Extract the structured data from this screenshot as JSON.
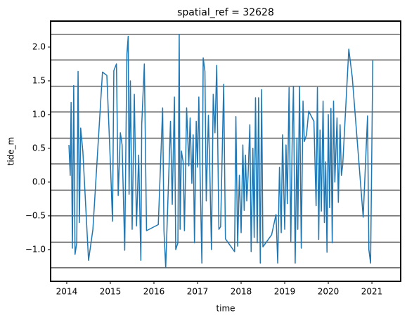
{
  "chart_data": {
    "type": "line",
    "title": "spatial_ref = 32628",
    "xlabel": "time",
    "ylabel": "tide_m",
    "color": "#1f77b4",
    "hline_color": "#666666",
    "hlines": [
      2.19,
      1.81,
      1.42,
      1.04,
      0.65,
      0.27,
      -0.12,
      -0.5,
      -0.89,
      -1.27
    ],
    "x": [
      2014.05,
      2014.08,
      2014.1,
      2014.13,
      2014.16,
      2014.19,
      2014.23,
      2014.26,
      2014.29,
      2014.32,
      2014.37,
      2014.5,
      2014.6,
      2014.82,
      2014.92,
      2015.0,
      2015.05,
      2015.08,
      2015.14,
      2015.18,
      2015.23,
      2015.27,
      2015.33,
      2015.38,
      2015.41,
      2015.43,
      2015.46,
      2015.5,
      2015.55,
      2015.6,
      2015.65,
      2015.7,
      2015.72,
      2015.78,
      2015.83,
      2016.1,
      2016.2,
      2016.23,
      2016.27,
      2016.38,
      2016.42,
      2016.47,
      2016.5,
      2016.55,
      2016.58,
      2016.6,
      2016.63,
      2016.67,
      2016.7,
      2016.75,
      2016.8,
      2016.83,
      2016.87,
      2016.9,
      2016.93,
      2016.97,
      2017.0,
      2017.03,
      2017.06,
      2017.1,
      2017.13,
      2017.17,
      2017.2,
      2017.25,
      2017.28,
      2017.32,
      2017.36,
      2017.4,
      2017.44,
      2017.49,
      2017.53,
      2017.6,
      2017.64,
      2017.85,
      2017.88,
      2017.92,
      2017.96,
      2018.0,
      2018.04,
      2018.07,
      2018.1,
      2018.13,
      2018.16,
      2018.2,
      2018.23,
      2018.27,
      2018.3,
      2018.33,
      2018.37,
      2018.4,
      2018.44,
      2018.47,
      2018.5,
      2018.7,
      2018.8,
      2018.84,
      2018.88,
      2018.92,
      2018.95,
      2019.0,
      2019.03,
      2019.06,
      2019.1,
      2019.14,
      2019.17,
      2019.2,
      2019.24,
      2019.28,
      2019.3,
      2019.34,
      2019.38,
      2019.42,
      2019.45,
      2019.5,
      2019.55,
      2019.67,
      2019.72,
      2019.75,
      2019.78,
      2019.81,
      2019.84,
      2019.88,
      2019.91,
      2019.94,
      2019.97,
      2020.0,
      2020.03,
      2020.06,
      2020.09,
      2020.12,
      2020.15,
      2020.2,
      2020.23,
      2020.27,
      2020.3,
      2020.33,
      2020.47,
      2020.55,
      2020.8,
      2020.9,
      2020.93,
      2020.97,
      2021.02
    ],
    "values": [
      0.55,
      0.1,
      1.18,
      -0.98,
      1.43,
      -1.07,
      -0.9,
      1.64,
      -0.6,
      0.8,
      0.45,
      -1.16,
      -0.7,
      1.63,
      1.58,
      0.3,
      -0.58,
      1.65,
      1.75,
      -0.2,
      0.73,
      0.55,
      -1.01,
      1.9,
      2.16,
      -0.18,
      1.5,
      -0.7,
      1.3,
      -0.65,
      0.4,
      -1.16,
      0.85,
      1.75,
      -0.72,
      -0.63,
      1.1,
      -0.72,
      -1.27,
      0.9,
      -0.33,
      1.26,
      -1.0,
      -0.9,
      2.19,
      -0.7,
      0.46,
      0.3,
      -0.72,
      1.1,
      0.24,
      0.95,
      -0.02,
      0.7,
      -0.9,
      0.9,
      0.22,
      1.26,
      0.07,
      -1.2,
      1.84,
      1.64,
      -0.28,
      0.99,
      0.22,
      -1.0,
      1.3,
      0.73,
      1.73,
      -0.7,
      -0.66,
      1.45,
      -0.84,
      -1.03,
      0.97,
      -0.95,
      0.1,
      -0.75,
      0.55,
      -0.42,
      0.4,
      -0.28,
      0.1,
      0.85,
      -1.03,
      0.5,
      -0.82,
      1.25,
      -0.9,
      1.25,
      -1.2,
      1.37,
      -0.96,
      -0.78,
      -0.48,
      -1.2,
      0.22,
      -0.75,
      0.7,
      -0.7,
      0.55,
      -0.32,
      1.4,
      -0.88,
      0.55,
      1.42,
      -1.2,
      0.65,
      -0.7,
      1.42,
      -0.98,
      1.2,
      0.6,
      0.7,
      1.05,
      0.9,
      -0.35,
      1.4,
      -0.85,
      0.77,
      -0.43,
      1.2,
      -0.6,
      0.3,
      -1.04,
      1.0,
      -0.38,
      1.09,
      -0.9,
      1.2,
      0.0,
      0.95,
      -0.3,
      0.85,
      0.1,
      0.25,
      1.97,
      1.55,
      -0.52,
      0.98,
      -1.0,
      -1.2,
      1.8
    ],
    "xlim": [
      2013.63,
      2021.66
    ],
    "ylim": [
      -1.47,
      2.385
    ],
    "xticks": [
      2014,
      2015,
      2016,
      2017,
      2018,
      2019,
      2020,
      2021
    ],
    "yticks": [
      {
        "value": -1,
        "label": "−1.0"
      },
      {
        "value": -0.5,
        "label": "−0.5"
      },
      {
        "value": 0,
        "label": "0.0"
      },
      0.5,
      {
        "value": 1,
        "label": "1.0"
      },
      1.5,
      {
        "value": 2,
        "label": "2.0"
      }
    ]
  }
}
